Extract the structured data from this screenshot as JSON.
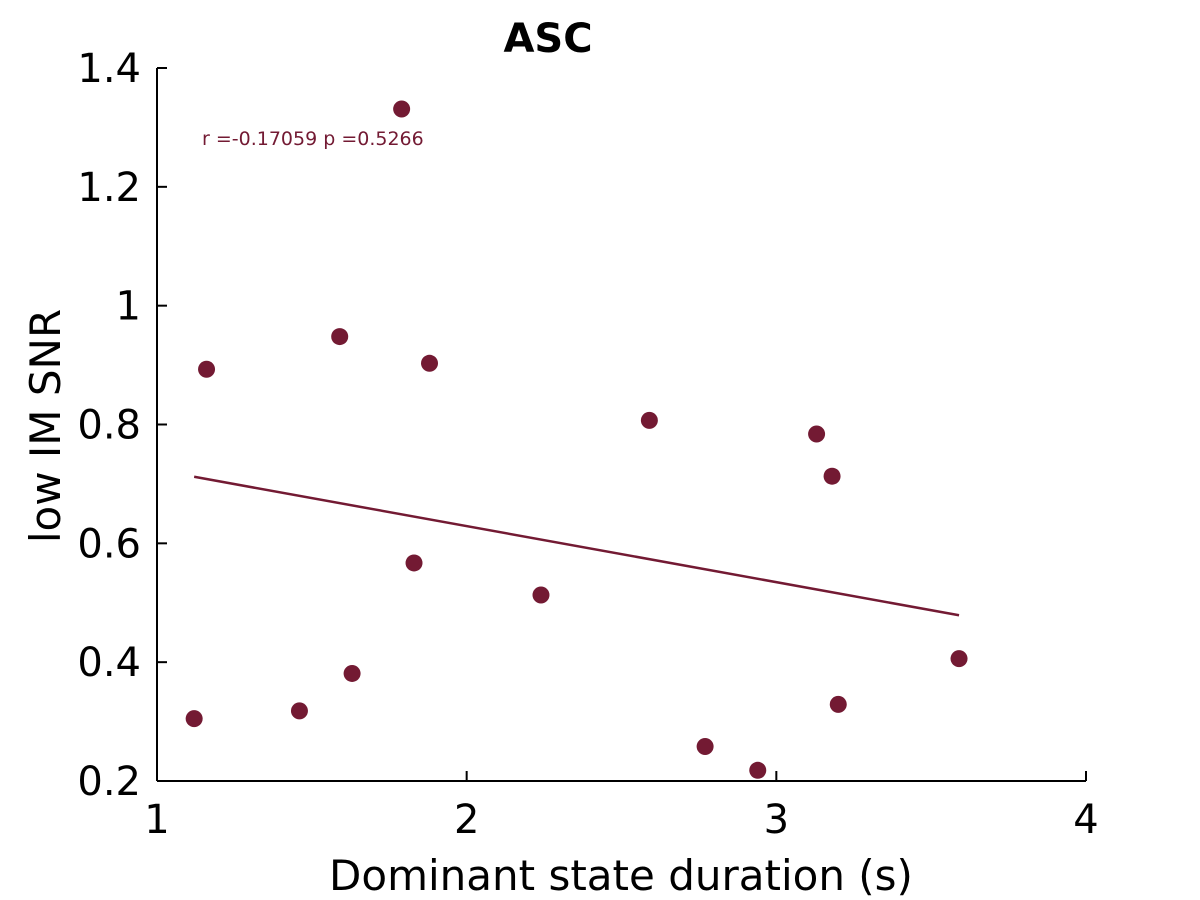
{
  "chart_data": {
    "type": "scatter",
    "title": "ASC",
    "xlabel": "Dominant state duration (s)",
    "ylabel": "low IM SNR",
    "xlim": [
      1,
      4
    ],
    "ylim": [
      0.2,
      1.4
    ],
    "xticks": [
      1,
      2,
      3,
      4
    ],
    "xtick_labels": [
      "1",
      "2",
      "3",
      "4"
    ],
    "yticks": [
      0.2,
      0.4,
      0.6,
      0.8,
      1.0,
      1.2,
      1.4
    ],
    "ytick_labels": [
      "0.2",
      "0.4",
      "0.6",
      "0.8",
      "1",
      "1.2",
      "1.4"
    ],
    "grid": false,
    "color": "#731a33",
    "points": [
      {
        "x": 1.12,
        "y": 0.305
      },
      {
        "x": 1.16,
        "y": 0.893
      },
      {
        "x": 1.46,
        "y": 0.318
      },
      {
        "x": 1.59,
        "y": 0.948
      },
      {
        "x": 1.63,
        "y": 0.381
      },
      {
        "x": 1.79,
        "y": 1.331
      },
      {
        "x": 1.83,
        "y": 0.567
      },
      {
        "x": 1.88,
        "y": 0.903
      },
      {
        "x": 2.24,
        "y": 0.513
      },
      {
        "x": 2.59,
        "y": 0.807
      },
      {
        "x": 2.77,
        "y": 0.258
      },
      {
        "x": 2.94,
        "y": 0.218
      },
      {
        "x": 3.13,
        "y": 0.784
      },
      {
        "x": 3.18,
        "y": 0.713
      },
      {
        "x": 3.2,
        "y": 0.329
      },
      {
        "x": 3.59,
        "y": 0.406
      }
    ],
    "fit_line": {
      "x": [
        1.12,
        3.59
      ],
      "y": [
        0.712,
        0.479
      ]
    },
    "annotation": "r =-0.17059   p =0.5266"
  }
}
